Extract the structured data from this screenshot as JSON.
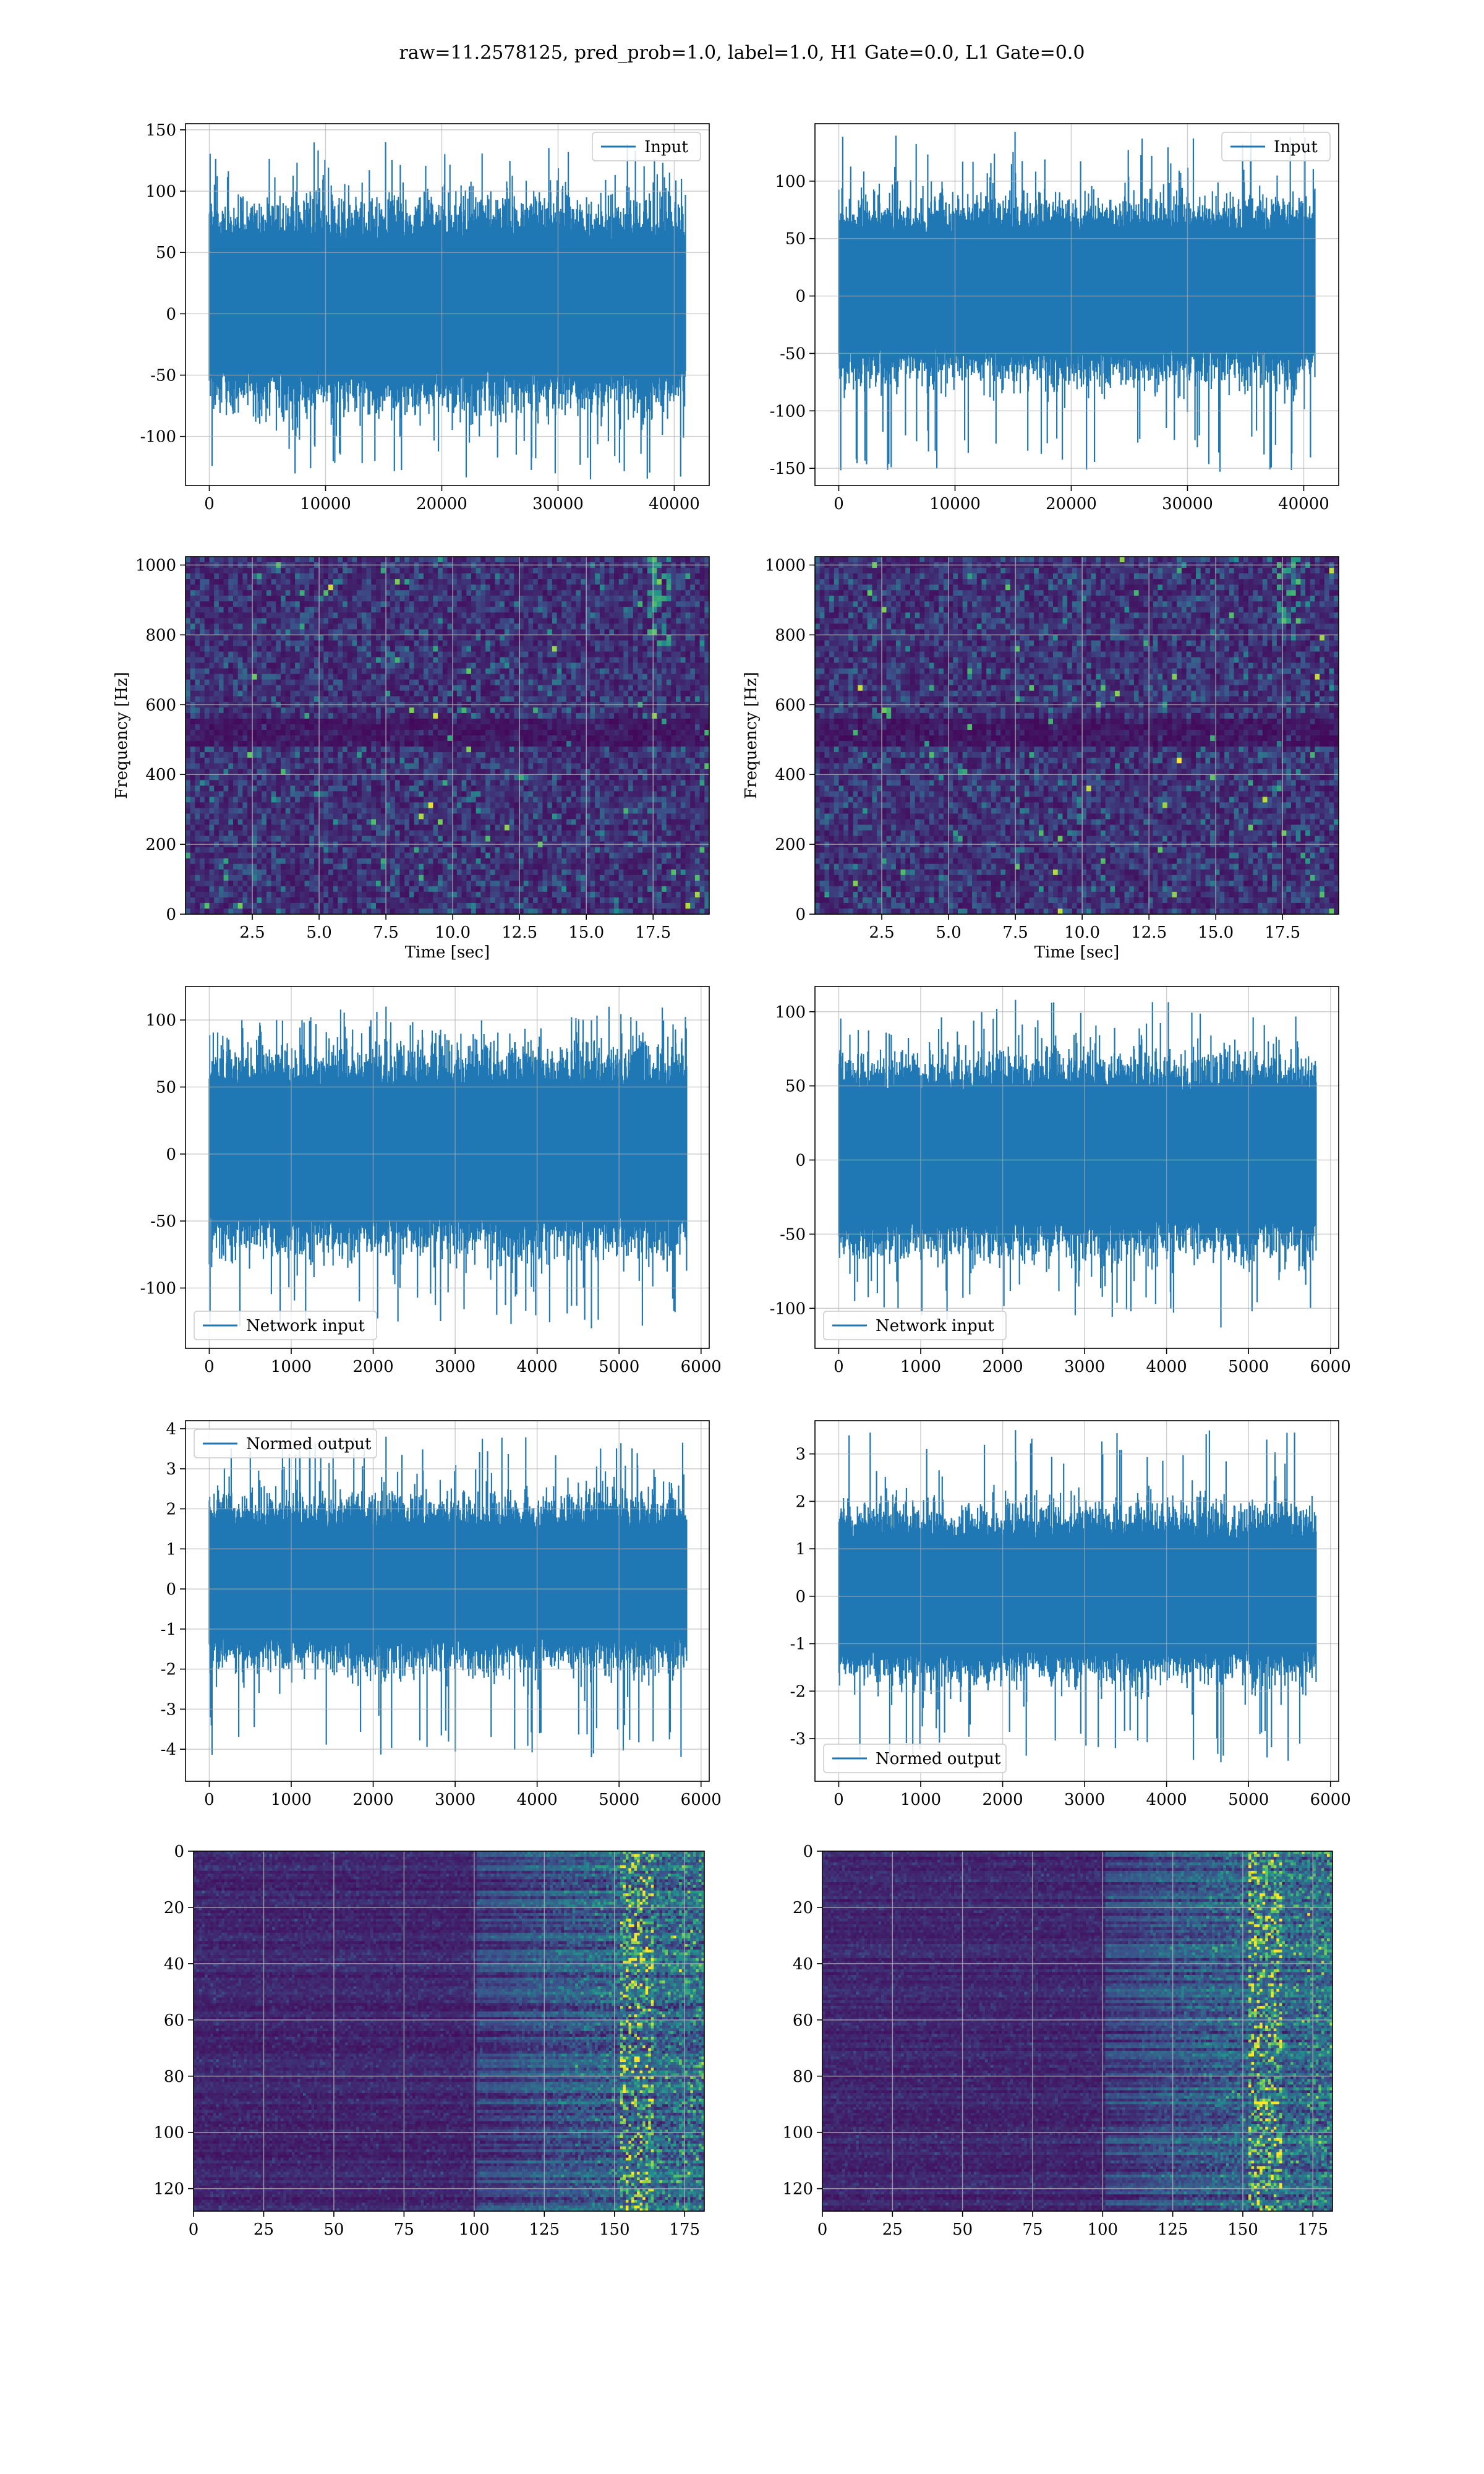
{
  "suptitle": "raw=11.2578125, pred_prob=1.0, label=1.0, H1 Gate=0.0, L1 Gate=0.0",
  "colors": {
    "line": "#1f77b4",
    "heat_low": "#440154",
    "heat_mid": "#21918c",
    "heat_high": "#fde725",
    "grid": "#b0b0b0"
  },
  "chart_data": [
    {
      "id": "r1c1",
      "type": "line",
      "legend": [
        "Input"
      ],
      "legend_loc": "upper right",
      "xlim": [
        -2048,
        43008
      ],
      "ylim": [
        -140,
        155
      ],
      "xticks": [
        0,
        10000,
        20000,
        30000,
        40000
      ],
      "yticks": [
        -100,
        -50,
        0,
        50,
        100,
        150
      ],
      "signal": {
        "x_range": [
          0,
          40960
        ],
        "band": [
          -45,
          60
        ],
        "max_peak": 140,
        "min_peak": -135
      }
    },
    {
      "id": "r1c2",
      "type": "line",
      "legend": [
        "Input"
      ],
      "legend_loc": "upper right",
      "xlim": [
        -2048,
        43008
      ],
      "ylim": [
        -165,
        150
      ],
      "xticks": [
        0,
        10000,
        20000,
        30000,
        40000
      ],
      "yticks": [
        -150,
        -100,
        -50,
        0,
        50,
        100
      ],
      "signal": {
        "x_range": [
          0,
          40960
        ],
        "band": [
          -45,
          55
        ],
        "max_peak": 143,
        "min_peak": -153
      }
    },
    {
      "id": "r2c1",
      "type": "heatmap",
      "xlabel": "Time [sec]",
      "ylabel": "Frequency [Hz]",
      "xlim": [
        0,
        19.6
      ],
      "ylim": [
        0,
        1024
      ],
      "xticks": [
        2.5,
        5.0,
        7.5,
        10.0,
        12.5,
        15.0,
        17.5
      ],
      "yticks": [
        0,
        200,
        400,
        600,
        800,
        1000
      ]
    },
    {
      "id": "r2c2",
      "type": "heatmap",
      "xlabel": "Time [sec]",
      "ylabel": "Frequency [Hz]",
      "xlim": [
        0,
        19.6
      ],
      "ylim": [
        0,
        1024
      ],
      "xticks": [
        2.5,
        5.0,
        7.5,
        10.0,
        12.5,
        15.0,
        17.5
      ],
      "yticks": [
        0,
        200,
        400,
        600,
        800,
        1000
      ]
    },
    {
      "id": "r3c1",
      "type": "line",
      "legend": [
        "Network input"
      ],
      "legend_loc": "lower left",
      "xlim": [
        -290,
        6100
      ],
      "ylim": [
        -145,
        125
      ],
      "xticks": [
        0,
        1000,
        2000,
        3000,
        4000,
        5000,
        6000
      ],
      "yticks": [
        -100,
        -50,
        0,
        50,
        100
      ],
      "signal": {
        "x_range": [
          0,
          5824
        ],
        "band": [
          -45,
          50
        ],
        "max_peak": 110,
        "min_peak": -130
      }
    },
    {
      "id": "r3c2",
      "type": "line",
      "legend": [
        "Network input"
      ],
      "legend_loc": "lower left",
      "xlim": [
        -290,
        6100
      ],
      "ylim": [
        -127,
        117
      ],
      "xticks": [
        0,
        1000,
        2000,
        3000,
        4000,
        5000,
        6000
      ],
      "yticks": [
        -100,
        -50,
        0,
        50,
        100
      ],
      "signal": {
        "x_range": [
          0,
          5824
        ],
        "band": [
          -40,
          45
        ],
        "max_peak": 108,
        "min_peak": -113
      }
    },
    {
      "id": "r4c1",
      "type": "line",
      "legend": [
        "Normed output"
      ],
      "legend_loc": "upper left",
      "xlim": [
        -290,
        6100
      ],
      "ylim": [
        -4.8,
        4.2
      ],
      "xticks": [
        0,
        1000,
        2000,
        3000,
        4000,
        5000,
        6000
      ],
      "yticks": [
        -4,
        -3,
        -2,
        -1,
        0,
        1,
        2,
        3,
        4
      ],
      "signal": {
        "x_range": [
          0,
          5824
        ],
        "band": [
          -1.2,
          1.5
        ],
        "max_peak": 3.8,
        "min_peak": -4.2
      }
    },
    {
      "id": "r4c2",
      "type": "line",
      "legend": [
        "Normed output"
      ],
      "legend_loc": "lower left",
      "xlim": [
        -290,
        6100
      ],
      "ylim": [
        -3.9,
        3.7
      ],
      "xticks": [
        0,
        1000,
        2000,
        3000,
        4000,
        5000,
        6000
      ],
      "yticks": [
        -3,
        -2,
        -1,
        0,
        1,
        2,
        3
      ],
      "signal": {
        "x_range": [
          0,
          5824
        ],
        "band": [
          -1.1,
          1.2
        ],
        "max_peak": 3.5,
        "min_peak": -3.5
      }
    },
    {
      "id": "r5c1",
      "type": "heatmap",
      "xlim": [
        0,
        182
      ],
      "ylim": [
        128,
        0
      ],
      "xticks": [
        0,
        25,
        50,
        75,
        100,
        125,
        150,
        175
      ],
      "yticks": [
        0,
        20,
        40,
        60,
        80,
        100,
        120
      ]
    },
    {
      "id": "r5c2",
      "type": "heatmap",
      "xlim": [
        0,
        182
      ],
      "ylim": [
        128,
        0
      ],
      "xticks": [
        0,
        25,
        50,
        75,
        100,
        125,
        150,
        175
      ],
      "yticks": [
        0,
        20,
        40,
        60,
        80,
        100,
        120
      ]
    }
  ]
}
